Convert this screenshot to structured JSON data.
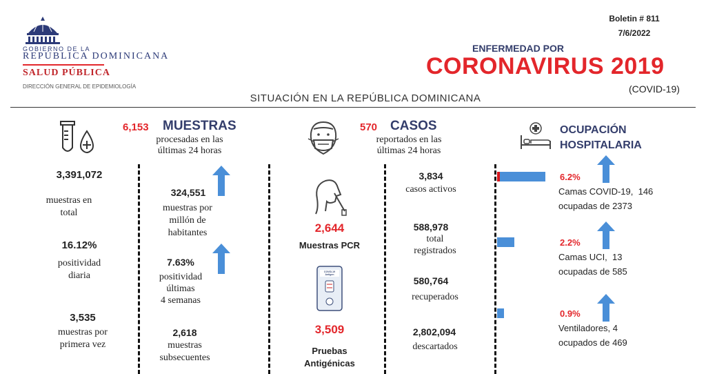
{
  "header": {
    "gov_line1": "GOBIERNO DE LA",
    "gov_line2": "REPÚBLICA DOMINICANA",
    "salud": "SALUD PÚBLICA",
    "direccion": "DIRECCIÓN GENERAL DE EPIDEMIOLOGÍA",
    "boletin": "Boletin # 811",
    "fecha": "7/6/2022",
    "enfermedad": "ENFERMEDAD POR",
    "coronavirus": "CORONAVIRUS 2019",
    "covid": "(COVID-19)",
    "situacion": "SITUACIÓN EN LA REPÚBLICA DOMINICANA"
  },
  "muestras": {
    "count24": "6,153",
    "title": "MUESTRAS",
    "subtitle1": "procesadas en las",
    "subtitle2": "últimas 24 horas",
    "total_value": "3,391,072",
    "total_l1": "muestras en",
    "total_l2": "total",
    "positividad_value": "16.12%",
    "positividad_l1": "positividad",
    "positividad_l2": "diaria",
    "primera_value": "3,535",
    "primera_l1": "muestras por",
    "primera_l2": "primera vez",
    "millon_value": "324,551",
    "millon_l1": "muestras por",
    "millon_l2": "millón de",
    "millon_l3": "habitantes",
    "pos4_value": "7.63%",
    "pos4_l1": "positividad",
    "pos4_l2": "últimas",
    "pos4_l3": "4 semanas",
    "subsec_value": "2,618",
    "subsec_l1": "muestras",
    "subsec_l2": "subsecuentes"
  },
  "casos": {
    "count24": "570",
    "title": "CASOS",
    "subtitle1": "reportados en las",
    "subtitle2": "últimas 24 horas",
    "pcr_value": "2,644",
    "pcr_label": "Muestras PCR",
    "antigen_value": "3,509",
    "antigen_l1": "Pruebas",
    "antigen_l2": "Antigénicas",
    "kit_label1": "COVID-19",
    "kit_label2": "Antigen",
    "activos_value": "3,834",
    "activos_label": "casos activos",
    "total_value": "588,978",
    "total_l1": "total",
    "total_l2": "registrados",
    "recuperados_value": "580,764",
    "recuperados_label": "recuperados",
    "descartados_value": "2,802,094",
    "descartados_label": "descartados"
  },
  "ocupacion": {
    "title1": "OCUPACIÓN",
    "title2": "HOSPITALARIA",
    "items": [
      {
        "pct": "6.2%",
        "value": 0.062,
        "l1": "Camas COVID-19,  146",
        "l2": "ocupadas de 2373"
      },
      {
        "pct": "2.2%",
        "value": 0.022,
        "l1": "Camas UCI,  13",
        "l2": "ocupadas de 585"
      },
      {
        "pct": "0.9%",
        "value": 0.009,
        "l1": "Ventiladores, 4",
        "l2": "ocupados de 469"
      }
    ]
  },
  "colors": {
    "accent_red": "#e3262b",
    "arrow_blue": "#4a8fd8",
    "navy": "#333d6b"
  },
  "icons": [
    "government-shield-icon",
    "test-tube-drop-icon",
    "masked-face-icon",
    "nasal-swab-icon",
    "antigen-test-kit-icon",
    "hospital-bed-icon"
  ]
}
